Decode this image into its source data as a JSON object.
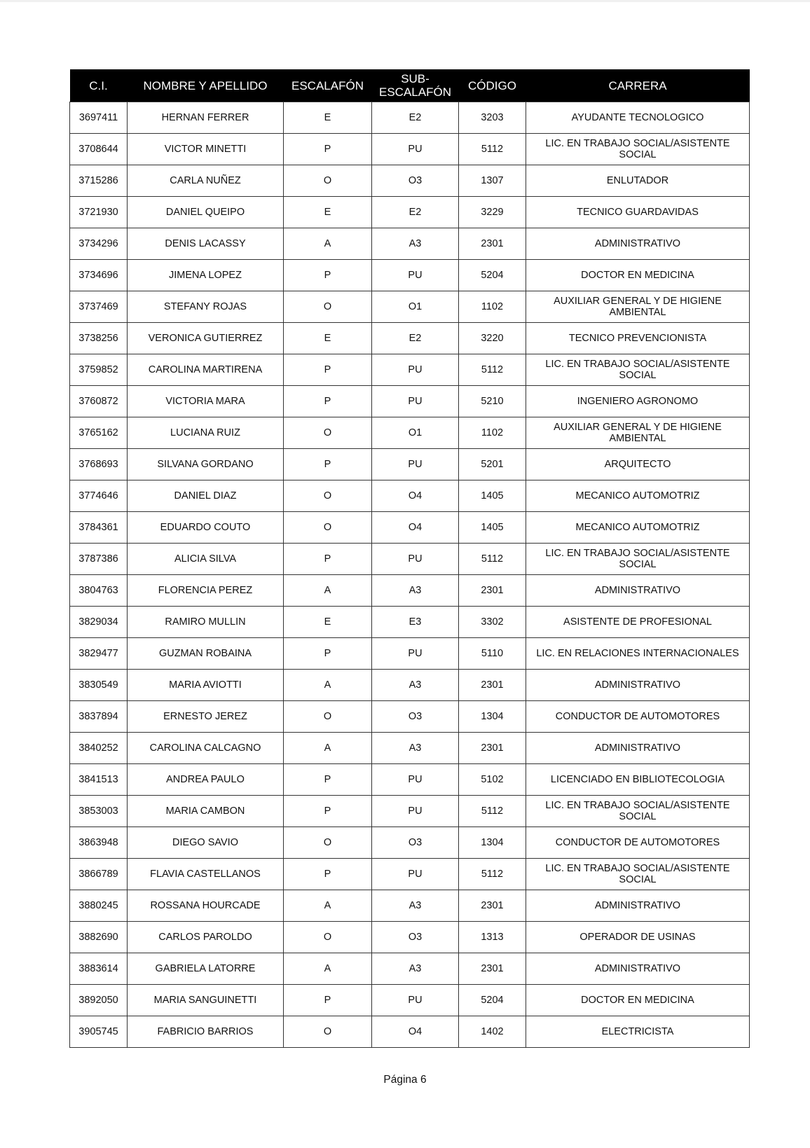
{
  "headers": [
    "C.I.",
    "NOMBRE Y APELLIDO",
    "ESCALAFÓN",
    "SUB-\nESCALAFÓN",
    "CÓDIGO",
    "CARRERA"
  ],
  "rows": [
    [
      "3697411",
      "HERNAN FERRER",
      "E",
      "E2",
      "3203",
      "AYUDANTE TECNOLOGICO"
    ],
    [
      "3708644",
      "VICTOR MINETTI",
      "P",
      "PU",
      "5112",
      "LIC. EN TRABAJO SOCIAL/ASISTENTE SOCIAL"
    ],
    [
      "3715286",
      "CARLA NUÑEZ",
      "O",
      "O3",
      "1307",
      "ENLUTADOR"
    ],
    [
      "3721930",
      "DANIEL QUEIPO",
      "E",
      "E2",
      "3229",
      "TECNICO GUARDAVIDAS"
    ],
    [
      "3734296",
      "DENIS LACASSY",
      "A",
      "A3",
      "2301",
      "ADMINISTRATIVO"
    ],
    [
      "3734696",
      "JIMENA LOPEZ",
      "P",
      "PU",
      "5204",
      "DOCTOR EN MEDICINA"
    ],
    [
      "3737469",
      "STEFANY ROJAS",
      "O",
      "O1",
      "1102",
      "AUXILIAR GENERAL Y DE HIGIENE AMBIENTAL"
    ],
    [
      "3738256",
      "VERONICA GUTIERREZ",
      "E",
      "E2",
      "3220",
      "TECNICO PREVENCIONISTA"
    ],
    [
      "3759852",
      "CAROLINA MARTIRENA",
      "P",
      "PU",
      "5112",
      "LIC. EN TRABAJO SOCIAL/ASISTENTE SOCIAL"
    ],
    [
      "3760872",
      "VICTORIA MARA",
      "P",
      "PU",
      "5210",
      "INGENIERO AGRONOMO"
    ],
    [
      "3765162",
      "LUCIANA RUIZ",
      "O",
      "O1",
      "1102",
      "AUXILIAR GENERAL Y DE HIGIENE AMBIENTAL"
    ],
    [
      "3768693",
      "SILVANA GORDANO",
      "P",
      "PU",
      "5201",
      "ARQUITECTO"
    ],
    [
      "3774646",
      "DANIEL DIAZ",
      "O",
      "O4",
      "1405",
      "MECANICO AUTOMOTRIZ"
    ],
    [
      "3784361",
      "EDUARDO COUTO",
      "O",
      "O4",
      "1405",
      "MECANICO AUTOMOTRIZ"
    ],
    [
      "3787386",
      "ALICIA SILVA",
      "P",
      "PU",
      "5112",
      "LIC. EN TRABAJO SOCIAL/ASISTENTE SOCIAL"
    ],
    [
      "3804763",
      "FLORENCIA PEREZ",
      "A",
      "A3",
      "2301",
      "ADMINISTRATIVO"
    ],
    [
      "3829034",
      "RAMIRO MULLIN",
      "E",
      "E3",
      "3302",
      "ASISTENTE DE PROFESIONAL"
    ],
    [
      "3829477",
      "GUZMAN ROBAINA",
      "P",
      "PU",
      "5110",
      "LIC. EN RELACIONES INTERNACIONALES"
    ],
    [
      "3830549",
      "MARIA AVIOTTI",
      "A",
      "A3",
      "2301",
      "ADMINISTRATIVO"
    ],
    [
      "3837894",
      "ERNESTO JEREZ",
      "O",
      "O3",
      "1304",
      "CONDUCTOR DE AUTOMOTORES"
    ],
    [
      "3840252",
      "CAROLINA CALCAGNO",
      "A",
      "A3",
      "2301",
      "ADMINISTRATIVO"
    ],
    [
      "3841513",
      "ANDREA PAULO",
      "P",
      "PU",
      "5102",
      "LICENCIADO EN BIBLIOTECOLOGIA"
    ],
    [
      "3853003",
      "MARIA CAMBON",
      "P",
      "PU",
      "5112",
      "LIC. EN TRABAJO SOCIAL/ASISTENTE SOCIAL"
    ],
    [
      "3863948",
      "DIEGO SAVIO",
      "O",
      "O3",
      "1304",
      "CONDUCTOR DE AUTOMOTORES"
    ],
    [
      "3866789",
      "FLAVIA CASTELLANOS",
      "P",
      "PU",
      "5112",
      "LIC. EN TRABAJO SOCIAL/ASISTENTE SOCIAL"
    ],
    [
      "3880245",
      "ROSSANA HOURCADE",
      "A",
      "A3",
      "2301",
      "ADMINISTRATIVO"
    ],
    [
      "3882690",
      "CARLOS PAROLDO",
      "O",
      "O3",
      "1313",
      "OPERADOR DE USINAS"
    ],
    [
      "3883614",
      "GABRIELA LATORRE",
      "A",
      "A3",
      "2301",
      "ADMINISTRATIVO"
    ],
    [
      "3892050",
      "MARIA SANGUINETTI",
      "P",
      "PU",
      "5204",
      "DOCTOR EN MEDICINA"
    ],
    [
      "3905745",
      "FABRICIO BARRIOS",
      "O",
      "O4",
      "1402",
      "ELECTRICISTA"
    ]
  ],
  "footer": "Página 6"
}
